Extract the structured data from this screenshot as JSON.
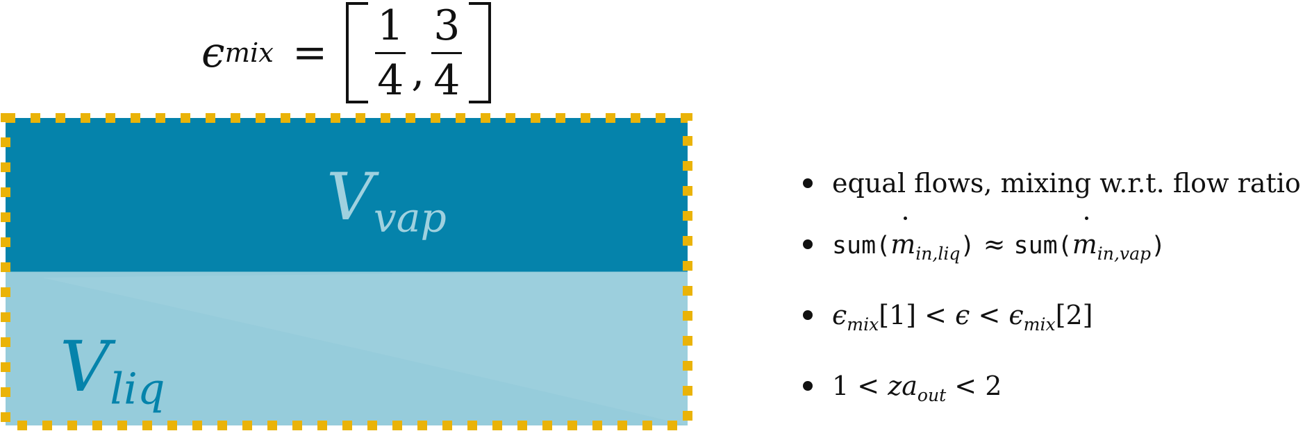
{
  "formula": {
    "symbol": "ϵ",
    "subscript": "mix",
    "equals": "=",
    "frac1": {
      "num": "1",
      "den": "4"
    },
    "frac2": {
      "num": "3",
      "den": "4"
    }
  },
  "vessel": {
    "vapor_fraction": 0.5,
    "colors": {
      "vapor": "#0583ab",
      "liquid": "#96ccdb",
      "border": "#eab308"
    },
    "vapor_label": {
      "main": "V",
      "sub": "vap"
    },
    "liquid_label": {
      "main": "V",
      "sub": "liq"
    }
  },
  "bullets": {
    "b1": "equal flows, mixing w.r.t. flow ratio",
    "b2": {
      "fn": "sum(",
      "m": "m",
      "sub_liq": "in,liq",
      "close": ")",
      "approx": " ≈ ",
      "sub_vap": "in,vap"
    },
    "b3": {
      "e": "ϵ",
      "sub": "mix",
      "idx1": "[1]",
      "lt": " < ",
      "idx2": "[2]"
    },
    "b4": {
      "one": "1",
      "lt": " < ",
      "var": "za",
      "sub": "out",
      "two": "2"
    }
  }
}
